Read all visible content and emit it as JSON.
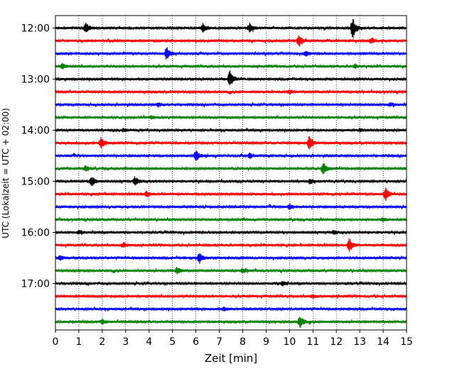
{
  "chart_data": {
    "type": "line",
    "title": "",
    "xlabel": "Zeit  [min]",
    "ylabel": "UTC (Lokalzeit = UTC + 02:00)",
    "xlim": [
      0,
      15
    ],
    "x_ticks": [
      0,
      1,
      2,
      3,
      4,
      5,
      6,
      7,
      8,
      9,
      10,
      11,
      12,
      13,
      14,
      15
    ],
    "y_tick_labels": [
      "12:00",
      "13:00",
      "14:00",
      "15:00",
      "16:00",
      "17:00"
    ],
    "grid": "vertical-dotted",
    "trace_interval_minutes": 15,
    "start_time": "12:00",
    "trace_colors": [
      "#000000",
      "#ff0000",
      "#0000ff",
      "#008000"
    ],
    "traces": [
      {
        "start": "12:00",
        "color": "#000000",
        "events": [
          {
            "t": 1.3,
            "amp": 1.0
          },
          {
            "t": 6.3,
            "amp": 0.9
          },
          {
            "t": 8.3,
            "amp": 1.0
          },
          {
            "t": 12.7,
            "amp": 2.2
          }
        ]
      },
      {
        "start": "12:15",
        "color": "#ff0000",
        "events": [
          {
            "t": 10.4,
            "amp": 1.2
          },
          {
            "t": 13.5,
            "amp": 0.6
          }
        ]
      },
      {
        "start": "12:30",
        "color": "#0000ff",
        "events": [
          {
            "t": 4.75,
            "amp": 1.3
          },
          {
            "t": 10.7,
            "amp": 0.5
          }
        ]
      },
      {
        "start": "12:45",
        "color": "#008000",
        "events": [
          {
            "t": 0.3,
            "amp": 0.5
          },
          {
            "t": 12.8,
            "amp": 0.4
          }
        ]
      },
      {
        "start": "13:00",
        "color": "#000000",
        "events": [
          {
            "t": 7.45,
            "amp": 1.7
          }
        ]
      },
      {
        "start": "13:15",
        "color": "#ff0000",
        "events": [
          {
            "t": 10.0,
            "amp": 0.4
          }
        ]
      },
      {
        "start": "13:30",
        "color": "#0000ff",
        "events": [
          {
            "t": 4.4,
            "amp": 0.4
          },
          {
            "t": 14.3,
            "amp": 0.4
          }
        ]
      },
      {
        "start": "13:45",
        "color": "#008000",
        "events": [
          {
            "t": 4.1,
            "amp": 0.3
          }
        ]
      },
      {
        "start": "14:00",
        "color": "#000000",
        "events": [
          {
            "t": 2.9,
            "amp": 0.3
          },
          {
            "t": 13.0,
            "amp": 0.4
          }
        ]
      },
      {
        "start": "14:15",
        "color": "#ff0000",
        "events": [
          {
            "t": 1.95,
            "amp": 1.1
          },
          {
            "t": 10.85,
            "amp": 1.6
          }
        ]
      },
      {
        "start": "14:30",
        "color": "#0000ff",
        "events": [
          {
            "t": 6.0,
            "amp": 1.2
          },
          {
            "t": 8.3,
            "amp": 0.5
          }
        ]
      },
      {
        "start": "14:45",
        "color": "#008000",
        "events": [
          {
            "t": 1.3,
            "amp": 0.6
          },
          {
            "t": 11.45,
            "amp": 1.4
          }
        ]
      },
      {
        "start": "15:00",
        "color": "#000000",
        "events": [
          {
            "t": 1.55,
            "amp": 1.1
          },
          {
            "t": 3.4,
            "amp": 1.0
          },
          {
            "t": 10.9,
            "amp": 0.5
          }
        ]
      },
      {
        "start": "15:15",
        "color": "#ff0000",
        "events": [
          {
            "t": 3.9,
            "amp": 0.5
          },
          {
            "t": 14.1,
            "amp": 1.4
          }
        ]
      },
      {
        "start": "15:30",
        "color": "#0000ff",
        "events": [
          {
            "t": 10.0,
            "amp": 0.5
          }
        ]
      },
      {
        "start": "15:45",
        "color": "#008000",
        "events": [
          {
            "t": 14.0,
            "amp": 0.4
          }
        ]
      },
      {
        "start": "16:00",
        "color": "#000000",
        "events": [
          {
            "t": 1.0,
            "amp": 0.4
          },
          {
            "t": 11.9,
            "amp": 0.4
          }
        ]
      },
      {
        "start": "16:15",
        "color": "#ff0000",
        "events": [
          {
            "t": 2.9,
            "amp": 0.5
          },
          {
            "t": 12.55,
            "amp": 1.4
          }
        ]
      },
      {
        "start": "16:30",
        "color": "#0000ff",
        "events": [
          {
            "t": 0.2,
            "amp": 0.6
          },
          {
            "t": 6.15,
            "amp": 1.1
          }
        ]
      },
      {
        "start": "16:45",
        "color": "#008000",
        "events": [
          {
            "t": 5.2,
            "amp": 0.7
          },
          {
            "t": 8.0,
            "amp": 0.4
          }
        ]
      },
      {
        "start": "17:00",
        "color": "#000000",
        "events": [
          {
            "t": 9.7,
            "amp": 0.4
          }
        ]
      },
      {
        "start": "17:15",
        "color": "#ff0000",
        "events": [
          {
            "t": 11.0,
            "amp": 0.3
          }
        ]
      },
      {
        "start": "17:30",
        "color": "#0000ff",
        "events": [
          {
            "t": 7.2,
            "amp": 0.3
          }
        ]
      },
      {
        "start": "17:45",
        "color": "#008000",
        "events": [
          {
            "t": 2.0,
            "amp": 0.5
          },
          {
            "t": 10.45,
            "amp": 1.2
          }
        ]
      }
    ]
  }
}
